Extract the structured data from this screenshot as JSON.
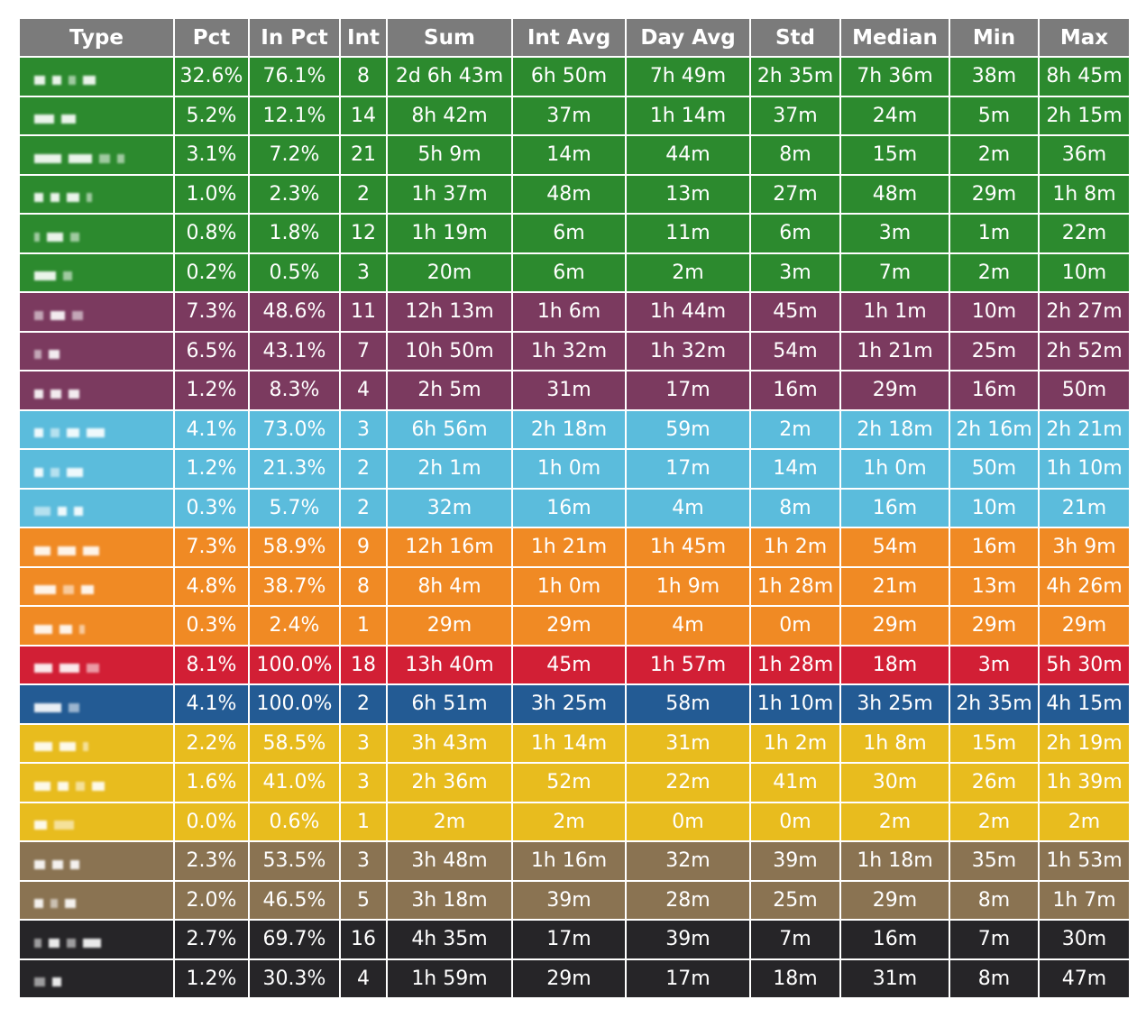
{
  "chart_data": {
    "type": "table",
    "title": "",
    "columns": [
      "Type",
      "Pct",
      "In Pct",
      "Int",
      "Sum",
      "Int Avg",
      "Day Avg",
      "Std",
      "Median",
      "Min",
      "Max"
    ],
    "groups": [
      {
        "color": "#2c8a2e",
        "rows": [
          [
            "",
            "32.6%",
            "76.1%",
            "8",
            "2d 6h 43m",
            "6h 50m",
            "7h 49m",
            "2h 35m",
            "7h 36m",
            "38m",
            "8h 45m"
          ],
          [
            "",
            "5.2%",
            "12.1%",
            "14",
            "8h 42m",
            "37m",
            "1h 14m",
            "37m",
            "24m",
            "5m",
            "2h 15m"
          ],
          [
            "",
            "3.1%",
            "7.2%",
            "21",
            "5h 9m",
            "14m",
            "44m",
            "8m",
            "15m",
            "2m",
            "36m"
          ],
          [
            "",
            "1.0%",
            "2.3%",
            "2",
            "1h 37m",
            "48m",
            "13m",
            "27m",
            "48m",
            "29m",
            "1h 8m"
          ],
          [
            "",
            "0.8%",
            "1.8%",
            "12",
            "1h 19m",
            "6m",
            "11m",
            "6m",
            "3m",
            "1m",
            "22m"
          ],
          [
            "",
            "0.2%",
            "0.5%",
            "3",
            "20m",
            "6m",
            "2m",
            "3m",
            "7m",
            "2m",
            "10m"
          ]
        ]
      },
      {
        "color": "#7b3a5f",
        "rows": [
          [
            "",
            "7.3%",
            "48.6%",
            "11",
            "12h 13m",
            "1h 6m",
            "1h 44m",
            "45m",
            "1h 1m",
            "10m",
            "2h 27m"
          ],
          [
            "",
            "6.5%",
            "43.1%",
            "7",
            "10h 50m",
            "1h 32m",
            "1h 32m",
            "54m",
            "1h 21m",
            "25m",
            "2h 52m"
          ],
          [
            "",
            "1.2%",
            "8.3%",
            "4",
            "2h 5m",
            "31m",
            "17m",
            "16m",
            "29m",
            "16m",
            "50m"
          ]
        ]
      },
      {
        "color": "#5bbcdc",
        "rows": [
          [
            "",
            "4.1%",
            "73.0%",
            "3",
            "6h 56m",
            "2h 18m",
            "59m",
            "2m",
            "2h 18m",
            "2h 16m",
            "2h 21m"
          ],
          [
            "",
            "1.2%",
            "21.3%",
            "2",
            "2h 1m",
            "1h 0m",
            "17m",
            "14m",
            "1h 0m",
            "50m",
            "1h 10m"
          ],
          [
            "",
            "0.3%",
            "5.7%",
            "2",
            "32m",
            "16m",
            "4m",
            "8m",
            "16m",
            "10m",
            "21m"
          ]
        ]
      },
      {
        "color": "#f08a24",
        "rows": [
          [
            "",
            "7.3%",
            "58.9%",
            "9",
            "12h 16m",
            "1h 21m",
            "1h 45m",
            "1h 2m",
            "54m",
            "16m",
            "3h 9m"
          ],
          [
            "",
            "4.8%",
            "38.7%",
            "8",
            "8h 4m",
            "1h 0m",
            "1h 9m",
            "1h 28m",
            "21m",
            "13m",
            "4h 26m"
          ],
          [
            "",
            "0.3%",
            "2.4%",
            "1",
            "29m",
            "29m",
            "4m",
            "0m",
            "29m",
            "29m",
            "29m"
          ]
        ]
      },
      {
        "color": "#d21f35",
        "rows": [
          [
            "",
            "8.1%",
            "100.0%",
            "18",
            "13h 40m",
            "45m",
            "1h 57m",
            "1h 28m",
            "18m",
            "3m",
            "5h 30m"
          ]
        ]
      },
      {
        "color": "#235b94",
        "rows": [
          [
            "",
            "4.1%",
            "100.0%",
            "2",
            "6h 51m",
            "3h 25m",
            "58m",
            "1h 10m",
            "3h 25m",
            "2h 35m",
            "4h 15m"
          ]
        ]
      },
      {
        "color": "#e8bc1e",
        "rows": [
          [
            "",
            "2.2%",
            "58.5%",
            "3",
            "3h 43m",
            "1h 14m",
            "31m",
            "1h 2m",
            "1h 8m",
            "15m",
            "2h 19m"
          ],
          [
            "",
            "1.6%",
            "41.0%",
            "3",
            "2h 36m",
            "52m",
            "22m",
            "41m",
            "30m",
            "26m",
            "1h 39m"
          ],
          [
            "",
            "0.0%",
            "0.6%",
            "1",
            "2m",
            "2m",
            "0m",
            "0m",
            "2m",
            "2m",
            "2m"
          ]
        ]
      },
      {
        "color": "#8a7352",
        "rows": [
          [
            "",
            "2.3%",
            "53.5%",
            "3",
            "3h 48m",
            "1h 16m",
            "32m",
            "39m",
            "1h 18m",
            "35m",
            "1h 53m"
          ],
          [
            "",
            "2.0%",
            "46.5%",
            "5",
            "3h 18m",
            "39m",
            "28m",
            "25m",
            "29m",
            "8m",
            "1h 7m"
          ]
        ]
      },
      {
        "color": "#262528",
        "rows": [
          [
            "",
            "2.7%",
            "69.7%",
            "16",
            "4h 35m",
            "17m",
            "39m",
            "7m",
            "16m",
            "7m",
            "30m"
          ],
          [
            "",
            "1.2%",
            "30.3%",
            "4",
            "1h 59m",
            "29m",
            "17m",
            "18m",
            "31m",
            "8m",
            "47m"
          ]
        ]
      }
    ]
  }
}
